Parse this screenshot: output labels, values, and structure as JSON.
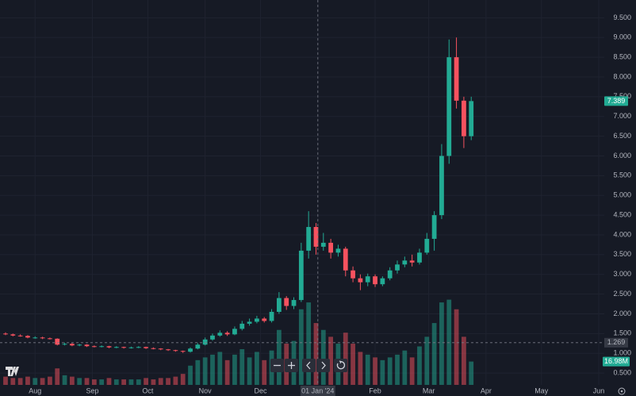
{
  "chart_data": {
    "type": "candlestick",
    "x": [
      -16,
      -12,
      -8,
      -4,
      0,
      4,
      8,
      12,
      16,
      20,
      24,
      28,
      32,
      36,
      40,
      44,
      48,
      52,
      56,
      60,
      64,
      68,
      72,
      76,
      80,
      84,
      88,
      92,
      96,
      100,
      104,
      108,
      112,
      116,
      120,
      124,
      128,
      132,
      136,
      140,
      144,
      148,
      152,
      156,
      160,
      164,
      168,
      172,
      176,
      180,
      184,
      188,
      192,
      196,
      200,
      204,
      208,
      212,
      216,
      220,
      224,
      228,
      232,
      236
    ],
    "open": [
      1.5,
      1.48,
      1.45,
      1.44,
      1.4,
      1.4,
      1.38,
      1.37,
      1.22,
      1.24,
      1.2,
      1.22,
      1.18,
      1.17,
      1.18,
      1.15,
      1.16,
      1.14,
      1.15,
      1.16,
      1.13,
      1.12,
      1.1,
      1.08,
      1.06,
      1.04,
      1.12,
      1.22,
      1.35,
      1.45,
      1.52,
      1.48,
      1.62,
      1.75,
      1.8,
      1.88,
      1.82,
      2.05,
      2.4,
      2.2,
      2.35,
      3.6,
      4.2,
      3.7,
      3.8,
      3.55,
      3.65,
      3.1,
      2.9,
      2.8,
      2.95,
      2.75,
      2.9,
      3.1,
      3.25,
      3.35,
      3.3,
      3.55,
      3.9,
      4.5,
      6.0,
      8.5,
      7.4,
      6.5
    ],
    "high": [
      1.53,
      1.5,
      1.48,
      1.46,
      1.43,
      1.42,
      1.4,
      1.38,
      1.27,
      1.26,
      1.24,
      1.23,
      1.2,
      1.2,
      1.19,
      1.18,
      1.17,
      1.17,
      1.18,
      1.17,
      1.15,
      1.13,
      1.11,
      1.09,
      1.07,
      1.15,
      1.26,
      1.4,
      1.5,
      1.58,
      1.56,
      1.68,
      1.82,
      1.88,
      1.95,
      1.92,
      2.12,
      2.55,
      2.45,
      2.42,
      3.8,
      4.6,
      4.3,
      4.05,
      3.9,
      3.75,
      3.7,
      3.2,
      3.0,
      3.02,
      3.0,
      2.95,
      3.18,
      3.35,
      3.45,
      3.5,
      3.65,
      4.05,
      4.6,
      6.3,
      8.95,
      9.0,
      7.5,
      7.5
    ],
    "low": [
      1.46,
      1.43,
      1.42,
      1.38,
      1.37,
      1.36,
      1.35,
      1.2,
      1.2,
      1.18,
      1.18,
      1.16,
      1.15,
      1.15,
      1.13,
      1.13,
      1.12,
      1.12,
      1.13,
      1.11,
      1.1,
      1.08,
      1.06,
      1.04,
      1.01,
      1.02,
      1.1,
      1.2,
      1.32,
      1.42,
      1.44,
      1.46,
      1.58,
      1.7,
      1.76,
      1.78,
      1.78,
      2.0,
      2.1,
      2.12,
      2.3,
      3.4,
      3.5,
      3.6,
      3.4,
      3.45,
      2.95,
      2.8,
      2.6,
      2.7,
      2.68,
      2.7,
      2.85,
      3.02,
      3.18,
      3.2,
      3.25,
      3.5,
      3.6,
      4.4,
      5.8,
      7.2,
      6.2,
      6.4
    ],
    "close": [
      1.48,
      1.45,
      1.44,
      1.4,
      1.4,
      1.38,
      1.37,
      1.22,
      1.24,
      1.2,
      1.22,
      1.18,
      1.17,
      1.18,
      1.15,
      1.16,
      1.14,
      1.15,
      1.16,
      1.13,
      1.12,
      1.1,
      1.08,
      1.06,
      1.04,
      1.12,
      1.22,
      1.35,
      1.45,
      1.52,
      1.48,
      1.62,
      1.75,
      1.8,
      1.88,
      1.82,
      2.05,
      2.4,
      2.2,
      2.35,
      3.6,
      4.2,
      3.7,
      3.8,
      3.55,
      3.65,
      3.1,
      2.9,
      2.8,
      2.95,
      2.75,
      2.9,
      3.1,
      3.25,
      3.35,
      3.3,
      3.55,
      3.9,
      4.5,
      6.0,
      8.5,
      7.4,
      6.5,
      7.389
    ],
    "volume": [
      6000000,
      5000000,
      5000000,
      6000000,
      5000000,
      5000000,
      6000000,
      12000000,
      7000000,
      6000000,
      5000000,
      5000000,
      4000000,
      4000000,
      5000000,
      4000000,
      4000000,
      4000000,
      4000000,
      5000000,
      4000000,
      5000000,
      5000000,
      6000000,
      8000000,
      14000000,
      18000000,
      20000000,
      22000000,
      24000000,
      18000000,
      22000000,
      26000000,
      20000000,
      24000000,
      18000000,
      25000000,
      40000000,
      30000000,
      32000000,
      55000000,
      60000000,
      45000000,
      40000000,
      35000000,
      30000000,
      38000000,
      30000000,
      24000000,
      22000000,
      20000000,
      18000000,
      20000000,
      22000000,
      25000000,
      20000000,
      28000000,
      35000000,
      45000000,
      60000000,
      62000000,
      55000000,
      35000000,
      16980000
    ],
    "last_volume_label": "16.98M",
    "volume_lim": [
      0,
      280000000
    ],
    "up_color": "#22ab94",
    "down_color": "#f7525f",
    "xlim": [
      -19,
      308
    ],
    "xticks": [
      {
        "value": 0,
        "label": "Aug"
      },
      {
        "value": 31,
        "label": "Sep"
      },
      {
        "value": 61,
        "label": "Oct"
      },
      {
        "value": 92,
        "label": "Nov"
      },
      {
        "value": 122,
        "label": "Dec"
      },
      {
        "value": 153,
        "label": "01 Jan '24"
      },
      {
        "value": 184,
        "label": "Feb"
      },
      {
        "value": 213,
        "label": "Mar"
      },
      {
        "value": 244,
        "label": "Apr"
      },
      {
        "value": 274,
        "label": "May"
      },
      {
        "value": 305,
        "label": "Jun"
      }
    ],
    "ylim": [
      0.2,
      9.95
    ],
    "yticks": [
      {
        "value": 0.5,
        "label": "0.500"
      },
      {
        "value": 1,
        "label": "1.000"
      },
      {
        "value": 1.5,
        "label": "1.500"
      },
      {
        "value": 2,
        "label": "2.000"
      },
      {
        "value": 2.5,
        "label": "2.500"
      },
      {
        "value": 3,
        "label": "3.000"
      },
      {
        "value": 3.5,
        "label": "3.500"
      },
      {
        "value": 4,
        "label": "4.000"
      },
      {
        "value": 4.5,
        "label": "4.500"
      },
      {
        "value": 5,
        "label": "5.000"
      },
      {
        "value": 5.5,
        "label": "5.500"
      },
      {
        "value": 6,
        "label": "6.000"
      },
      {
        "value": 6.5,
        "label": "6.500"
      },
      {
        "value": 7,
        "label": "7.000"
      },
      {
        "value": 7.5,
        "label": "7.500"
      },
      {
        "value": 8,
        "label": "8.000"
      },
      {
        "value": 8.5,
        "label": "8.500"
      },
      {
        "value": 9,
        "label": "9.000"
      },
      {
        "value": 9.5,
        "label": "9.500"
      }
    ],
    "crosshair": {
      "x": 153,
      "y": 1.269
    },
    "grid": true
  }
}
